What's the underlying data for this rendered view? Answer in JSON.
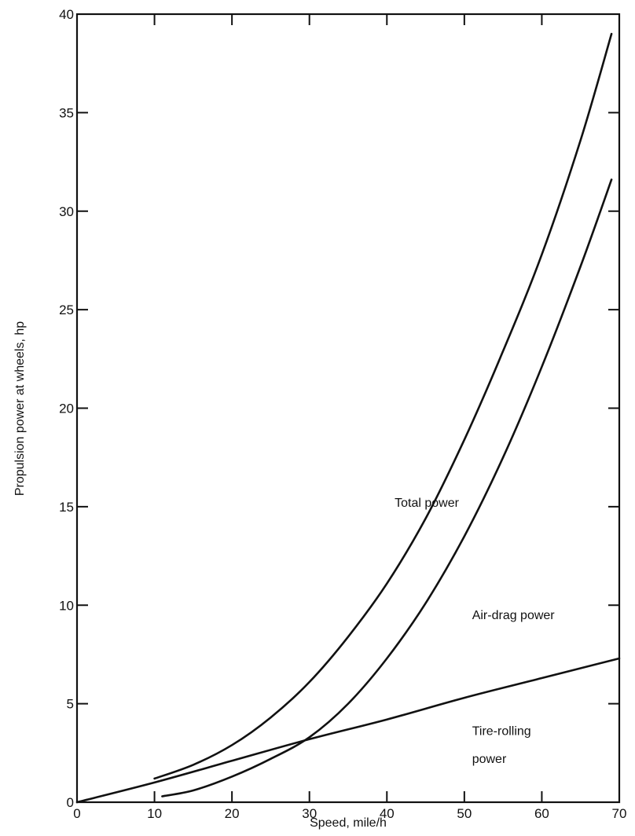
{
  "chart_data": {
    "type": "line",
    "title": "",
    "xlabel": "Speed, mile/h",
    "ylabel": "Propulsion power at wheels, hp",
    "xlim": [
      0,
      70
    ],
    "ylim": [
      0,
      40
    ],
    "x_ticks": [
      0,
      10,
      20,
      30,
      40,
      50,
      60,
      70
    ],
    "y_ticks": [
      0,
      5,
      10,
      15,
      20,
      25,
      30,
      35,
      40
    ],
    "x_tick_labels": [
      "0",
      "10",
      "20",
      "30",
      "40",
      "50",
      "60",
      "70"
    ],
    "y_tick_labels": [
      "0",
      "5",
      "10",
      "15",
      "20",
      "25",
      "30",
      "35",
      "40"
    ],
    "grid": false,
    "legend": "none",
    "series": [
      {
        "key": "total",
        "x": [
          10,
          15,
          20,
          25,
          30,
          35,
          40,
          45,
          50,
          55,
          60,
          65,
          69
        ],
        "y": [
          1.2,
          1.9,
          2.9,
          4.3,
          6.1,
          8.4,
          11.1,
          14.4,
          18.4,
          22.9,
          27.8,
          33.6,
          39.0
        ]
      },
      {
        "key": "air",
        "x": [
          11,
          15,
          20,
          25,
          30,
          35,
          40,
          45,
          50,
          55,
          60,
          65,
          69
        ],
        "y": [
          0.3,
          0.6,
          1.3,
          2.2,
          3.3,
          5.0,
          7.3,
          10.1,
          13.5,
          17.5,
          22.1,
          27.2,
          31.6
        ]
      },
      {
        "key": "tire",
        "x": [
          0,
          10,
          20,
          30,
          40,
          50,
          60,
          70
        ],
        "y": [
          0,
          1.0,
          2.1,
          3.2,
          4.2,
          5.3,
          6.3,
          7.3
        ]
      }
    ],
    "annotations": [
      {
        "key": "total",
        "text": "Total power",
        "x": 41,
        "y": 15.0
      },
      {
        "key": "air",
        "text": "Air-drag power",
        "x": 51,
        "y": 9.3
      },
      {
        "key": "tire",
        "text": "Tire-rolling",
        "x": 51,
        "y": 3.4
      },
      {
        "key": "tire2",
        "text": "power",
        "x": 51,
        "y": 2.0
      }
    ],
    "line_color": "#111111"
  }
}
